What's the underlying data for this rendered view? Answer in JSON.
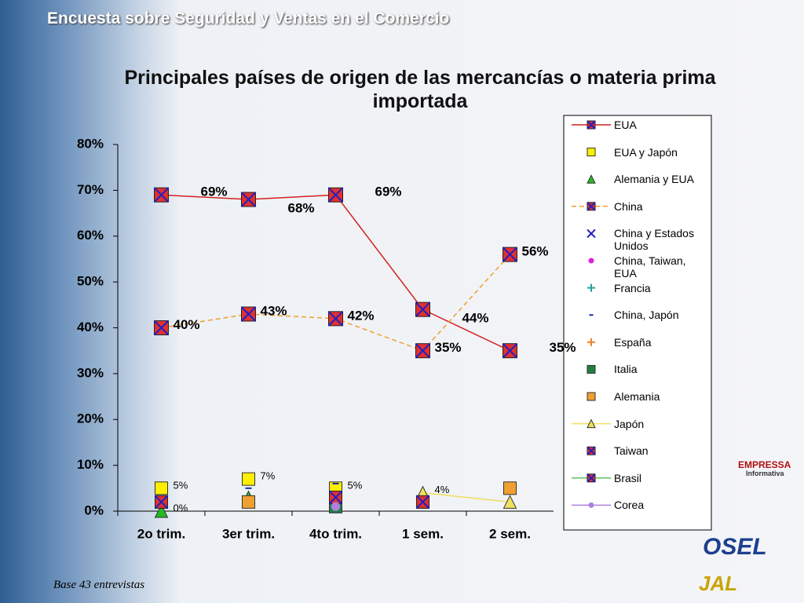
{
  "header": "Encuesta sobre Seguridad y Ventas en el Comercio",
  "footnote": "Base  43 entrevistas",
  "logos": [
    "EMPRESSA",
    "Informativa",
    "OSEL",
    "JAL"
  ],
  "chart_data": {
    "type": "line",
    "title": "Principales países de origen de las mercancías o materia prima importada",
    "categories": [
      "2o trim.",
      "3er trim.",
      "4to trim.",
      "1 sem.",
      "2 sem."
    ],
    "ylim": [
      0,
      80
    ],
    "yticks": [
      {
        "value": 0,
        "label": "0%"
      },
      {
        "value": 10,
        "label": "10%"
      },
      {
        "value": 20,
        "label": "20%"
      },
      {
        "value": 30,
        "label": "30%"
      },
      {
        "value": 40,
        "label": "40%"
      },
      {
        "value": 50,
        "label": "50%"
      },
      {
        "value": 60,
        "label": "60%"
      },
      {
        "value": 70,
        "label": "70%"
      },
      {
        "value": 80,
        "label": "80%"
      }
    ],
    "series": [
      {
        "name": "EUA",
        "color": "#d42020",
        "marker": "squarex",
        "line": "solid",
        "values": [
          69,
          68,
          69,
          44,
          35
        ],
        "value_labels": [
          "69%",
          "68%",
          "69%",
          "44%",
          "35%"
        ]
      },
      {
        "name": "EUA y Japón",
        "color": "#ffee00",
        "marker": "square",
        "values": [
          5,
          7,
          5,
          null,
          null
        ],
        "value_labels": [
          "5%",
          "7%",
          "5%",
          null,
          null
        ]
      },
      {
        "name": "Alemania y EUA",
        "color": "#22bb22",
        "marker": "triangle",
        "values": [
          0,
          3,
          1,
          null,
          null
        ],
        "value_labels": [
          "0%",
          null,
          null,
          null,
          null
        ]
      },
      {
        "name": "China",
        "color": "#f0a030",
        "marker": "squarex",
        "line": "dashed",
        "values": [
          40,
          43,
          42,
          35,
          56
        ],
        "value_labels": [
          "40%",
          "43%",
          "42%",
          "35%",
          "56%"
        ]
      },
      {
        "name": "China y Estados Unidos",
        "color": "#2020c0",
        "marker": "x",
        "values": [
          2,
          2,
          2,
          2,
          null
        ]
      },
      {
        "name": "China, Taiwan, EUA",
        "color": "#e020e0",
        "marker": "circle",
        "values": [
          2,
          null,
          null,
          null,
          null
        ]
      },
      {
        "name": "Francia",
        "color": "#20a0a0",
        "marker": "plus",
        "values": [
          2,
          2,
          1,
          null,
          null
        ]
      },
      {
        "name": "China, Japón",
        "color": "#1030a0",
        "marker": "dash",
        "values": [
          null,
          5,
          6,
          null,
          null
        ]
      },
      {
        "name": "España",
        "color": "#f08020",
        "marker": "plus",
        "values": [
          null,
          null,
          1,
          null,
          null
        ]
      },
      {
        "name": "Italia",
        "color": "#208040",
        "marker": "square",
        "values": [
          2,
          null,
          1,
          null,
          null
        ]
      },
      {
        "name": "Alemania",
        "color": "#f0a030",
        "marker": "square",
        "values": [
          null,
          2,
          3,
          2,
          5
        ]
      },
      {
        "name": "Japón",
        "color": "#f0e060",
        "marker": "triangle",
        "line": "solid",
        "values": [
          null,
          null,
          null,
          4,
          2
        ],
        "value_labels": [
          null,
          null,
          null,
          "4%",
          null
        ]
      },
      {
        "name": "Taiwan",
        "color": "#103060",
        "marker": "squarex",
        "values": [
          null,
          null,
          3,
          2,
          null
        ]
      },
      {
        "name": "Brasil",
        "color": "#60c060",
        "marker": "squarex",
        "line": "solid",
        "values": [
          2,
          null,
          null,
          null,
          null
        ]
      },
      {
        "name": "Corea",
        "color": "#b080e0",
        "marker": "circle",
        "line": "solid",
        "values": [
          null,
          null,
          1,
          null,
          null
        ]
      }
    ]
  }
}
